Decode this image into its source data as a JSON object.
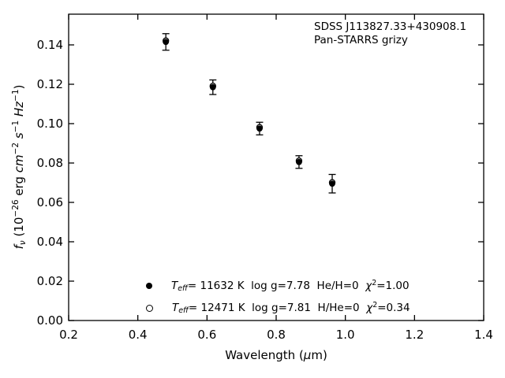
{
  "colors": {
    "foreground": "#000000",
    "background": "#ffffff"
  },
  "chart_data": {
    "type": "scatter",
    "title": "",
    "xlabel": "Wavelength (μm)",
    "ylabel": "f_ν (10^−26 erg cm^−2 s^−1 Hz^−1)",
    "xlim": [
      0.2,
      1.4
    ],
    "ylim": [
      0,
      0.1556
    ],
    "xticks": [
      0.2,
      0.4,
      0.6,
      0.8,
      1.0,
      1.2,
      1.4
    ],
    "xtick_labels": [
      "0.2",
      "0.4",
      "0.6",
      "0.8",
      "1.0",
      "1.2",
      "1.4"
    ],
    "yticks": [
      0.0,
      0.02,
      0.04,
      0.06,
      0.08,
      0.1,
      0.12,
      0.14
    ],
    "ytick_labels": [
      "0.00",
      "0.02",
      "0.04",
      "0.06",
      "0.08",
      "0.10",
      "0.12",
      "0.14"
    ],
    "grid": false,
    "legend_position": "lower center",
    "annotation_lines": [
      "SDSS J113827.33+430908.1",
      "Pan-STARRS grizy"
    ],
    "series": [
      {
        "name": "T_eff= 11632 K  log g=7.78  He/H=0  chi2=1.00",
        "marker": "filled-circle",
        "x": [
          0.481,
          0.617,
          0.752,
          0.866,
          0.962
        ],
        "y": [
          0.1415,
          0.1185,
          0.0975,
          0.0805,
          0.0695
        ],
        "yerr": [
          0.0042,
          0.0037,
          0.0032,
          0.0032,
          0.0047
        ]
      },
      {
        "name": "T_eff= 12471 K  log g=7.81  H/He=0  chi2=0.34",
        "marker": "open-circle",
        "x": [
          0.481,
          0.617,
          0.752,
          0.866,
          0.962
        ],
        "y": [
          0.1421,
          0.1191,
          0.0981,
          0.0811,
          0.0701
        ]
      }
    ]
  },
  "annotation": {
    "line1": "SDSS J113827.33+430908.1",
    "line2": "Pan-STARRS grizy"
  },
  "xlabel": {
    "pre": "Wavelength (",
    "mu": "μ",
    "post": "m)"
  },
  "ylabel": {
    "fsym": "f",
    "nu": "ν",
    "open": " (10",
    "exp": "−26",
    "erg": " erg ",
    "cm": "cm",
    "cmExp": "−2",
    "sp1": " ",
    "s": "s",
    "sExp": "−1",
    "sp2": " ",
    "hz": "Hz",
    "hzExp": "−1",
    "close": ")"
  },
  "legend": {
    "rows": [
      {
        "marker": "filled-circle",
        "t": "T",
        "sub": "eff",
        "mid": "= 11632 K  log g=7.78  He/H=0  ",
        "chi": "χ",
        "sup": "2",
        "tail": "=1.00"
      },
      {
        "marker": "open-circle",
        "t": "T",
        "sub": "eff",
        "mid": "= 12471 K  log g=7.81  H/He=0  ",
        "chi": "χ",
        "sup": "2",
        "tail": "=0.34"
      }
    ]
  }
}
